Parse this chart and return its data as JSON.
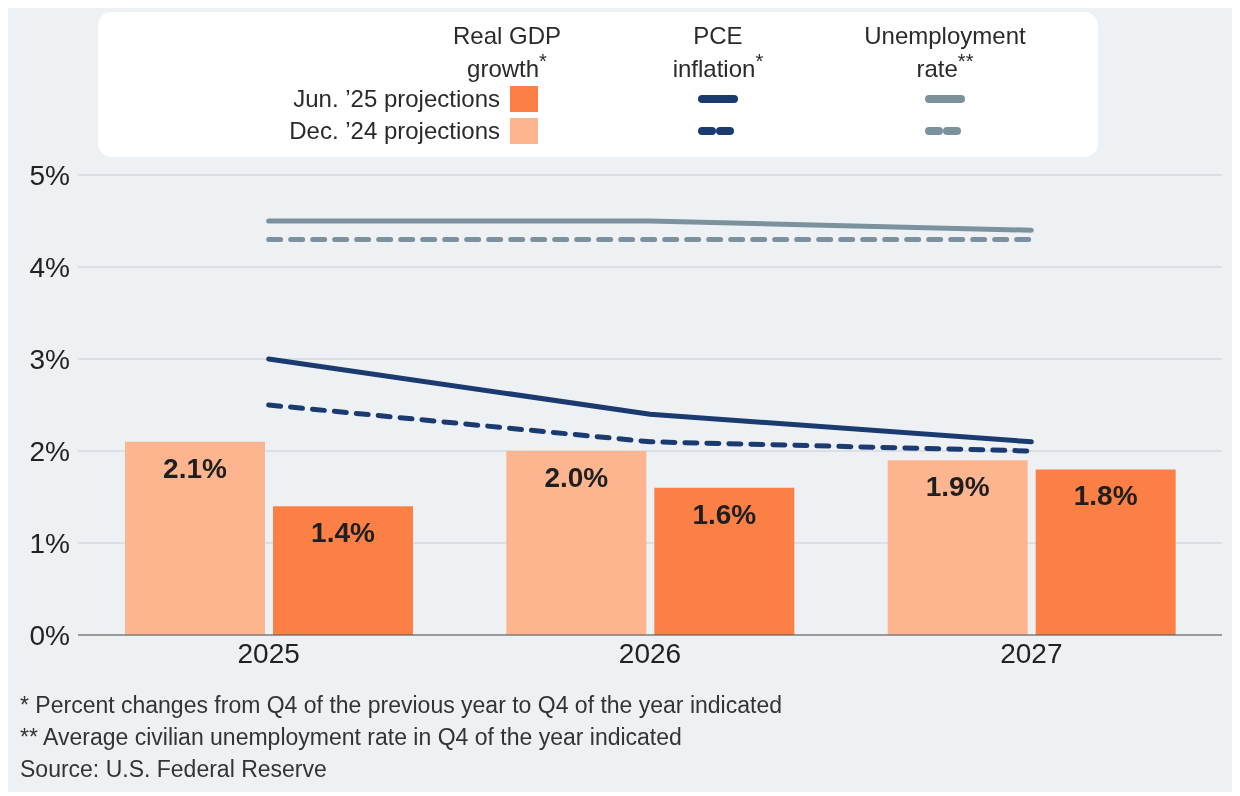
{
  "chart_data": {
    "type": "bar",
    "categories": [
      "2025",
      "2026",
      "2027"
    ],
    "series": [
      {
        "name": "Dec. ’24 projections",
        "color": "#fcb58f",
        "values": [
          2.1,
          2.0,
          1.9
        ],
        "value_labels": [
          "2.1%",
          "2.0%",
          "1.9%"
        ]
      },
      {
        "name": "Jun. ’25 projections",
        "color": "#fc7f45",
        "values": [
          1.4,
          1.6,
          1.8
        ],
        "value_labels": [
          "1.4%",
          "1.6%",
          "1.8%"
        ]
      },
      {
        "type": "line",
        "color": "#1b3a70",
        "values": [
          3.0,
          2.4,
          2.1
        ],
        "line_style": "solid"
      },
      {
        "type": "line",
        "color": "#1b3a70",
        "values": [
          2.5,
          2.1,
          2.0
        ],
        "line_style": "dashed"
      },
      {
        "type": "line",
        "color": "#7b919d",
        "values": [
          4.5,
          4.5,
          4.4
        ],
        "line_style": "solid"
      },
      {
        "type": "line",
        "color": "#7b919d",
        "values": [
          4.3,
          4.3,
          4.3
        ],
        "line_style": "dashed"
      }
    ],
    "ylim": [
      0,
      5
    ],
    "yticks": [
      {
        "value": 0,
        "label": "0%"
      },
      {
        "value": 1,
        "label": "1%"
      },
      {
        "value": 2,
        "label": "2%"
      },
      {
        "value": 3,
        "label": "3%"
      },
      {
        "value": 4,
        "label": "4%"
      },
      {
        "value": 5,
        "label": "5%"
      }
    ],
    "grid": "y",
    "legend": "top",
    "annotations": [
      "Real GDP growth$^{*}$",
      "PCE inflation$^{*}$",
      "Unemployment rate$^{**}$",
      "*  Percent changes from Q4 of the previous year to Q4 of the year indicated",
      "** Average civilian unemployment rate in Q4 of the year indicated",
      "Source: U.S. Federal Reserve"
    ]
  }
}
